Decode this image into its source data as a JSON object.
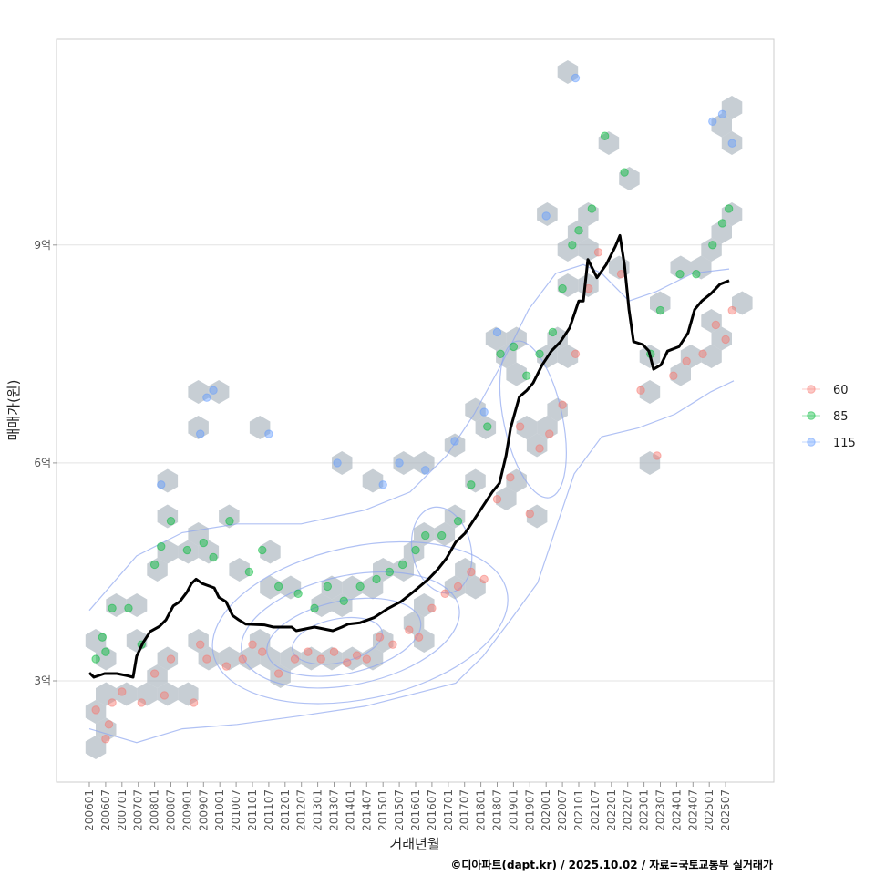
{
  "chart_data": {
    "type": "scatter",
    "title": "",
    "xlabel": "거래년월",
    "ylabel": "매매가(원)",
    "caption": "©디아파트(dapt.kr) / 2025.10.02 / 자료=국토교통부 실거래가",
    "ylim": [
      1.61,
      11.84
    ],
    "xlim": [
      2004.98,
      2027.0
    ],
    "y_unit": "억",
    "y_ticks": [
      {
        "value": 3,
        "label": "3억"
      },
      {
        "value": 6,
        "label": "6억"
      },
      {
        "value": 9,
        "label": "9억"
      }
    ],
    "x_ticks": [
      "200601",
      "200607",
      "200701",
      "200707",
      "200801",
      "200807",
      "200901",
      "200907",
      "201001",
      "201007",
      "201101",
      "201107",
      "201201",
      "201207",
      "201301",
      "201307",
      "201401",
      "201407",
      "201501",
      "201507",
      "201601",
      "201607",
      "201701",
      "201707",
      "201801",
      "201807",
      "201901",
      "201907",
      "202001",
      "202007",
      "202101",
      "202107",
      "202201",
      "202207",
      "202301",
      "202307",
      "202401",
      "202407",
      "202501",
      "202507"
    ],
    "grid": "horizontal-major",
    "legend": {
      "placement": "right",
      "entries": [
        {
          "label": "60",
          "color": "#F8766D"
        },
        {
          "label": "85",
          "color": "#00BA38"
        },
        {
          "label": "115",
          "color": "#619CFF"
        }
      ]
    },
    "series": [
      {
        "name": "60",
        "type": "scatter",
        "color": "#F8766D",
        "points": [
          [
            2006.2,
            2.6
          ],
          [
            2006.5,
            2.2
          ],
          [
            2006.6,
            2.4
          ],
          [
            2006.7,
            2.7
          ],
          [
            2007.0,
            2.85
          ],
          [
            2007.6,
            2.7
          ],
          [
            2008.0,
            3.1
          ],
          [
            2008.3,
            2.8
          ],
          [
            2008.5,
            3.3
          ],
          [
            2009.2,
            2.7
          ],
          [
            2009.4,
            3.5
          ],
          [
            2009.6,
            3.3
          ],
          [
            2010.2,
            3.2
          ],
          [
            2010.7,
            3.3
          ],
          [
            2011.0,
            3.5
          ],
          [
            2011.3,
            3.4
          ],
          [
            2011.8,
            3.1
          ],
          [
            2012.3,
            3.3
          ],
          [
            2012.7,
            3.4
          ],
          [
            2013.1,
            3.3
          ],
          [
            2013.5,
            3.4
          ],
          [
            2013.9,
            3.25
          ],
          [
            2014.2,
            3.35
          ],
          [
            2014.5,
            3.3
          ],
          [
            2014.9,
            3.6
          ],
          [
            2015.3,
            3.5
          ],
          [
            2015.8,
            3.7
          ],
          [
            2016.1,
            3.6
          ],
          [
            2016.5,
            4.0
          ],
          [
            2016.9,
            4.2
          ],
          [
            2017.3,
            4.3
          ],
          [
            2017.7,
            4.5
          ],
          [
            2018.1,
            4.4
          ],
          [
            2018.5,
            5.5
          ],
          [
            2018.9,
            5.8
          ],
          [
            2019.2,
            6.5
          ],
          [
            2019.5,
            5.3
          ],
          [
            2019.8,
            6.2
          ],
          [
            2020.1,
            6.4
          ],
          [
            2020.5,
            6.8
          ],
          [
            2020.9,
            7.5
          ],
          [
            2021.3,
            8.4
          ],
          [
            2021.6,
            8.9
          ],
          [
            2022.3,
            8.6
          ],
          [
            2022.9,
            7.0
          ],
          [
            2023.4,
            6.1
          ],
          [
            2023.9,
            7.2
          ],
          [
            2024.3,
            7.4
          ],
          [
            2024.8,
            7.5
          ],
          [
            2025.2,
            7.9
          ],
          [
            2025.5,
            7.7
          ],
          [
            2025.7,
            8.1
          ]
        ]
      },
      {
        "name": "85",
        "type": "scatter",
        "color": "#00BA38",
        "points": [
          [
            2006.2,
            3.3
          ],
          [
            2006.4,
            3.6
          ],
          [
            2006.5,
            3.4
          ],
          [
            2006.7,
            4.0
          ],
          [
            2007.2,
            4.0
          ],
          [
            2007.6,
            3.5
          ],
          [
            2008.0,
            4.6
          ],
          [
            2008.2,
            4.85
          ],
          [
            2008.5,
            5.2
          ],
          [
            2009.0,
            4.8
          ],
          [
            2009.5,
            4.9
          ],
          [
            2009.8,
            4.7
          ],
          [
            2010.3,
            5.2
          ],
          [
            2010.9,
            4.5
          ],
          [
            2011.3,
            4.8
          ],
          [
            2011.8,
            4.3
          ],
          [
            2012.4,
            4.2
          ],
          [
            2012.9,
            4.0
          ],
          [
            2013.3,
            4.3
          ],
          [
            2013.8,
            4.1
          ],
          [
            2014.3,
            4.3
          ],
          [
            2014.8,
            4.4
          ],
          [
            2015.2,
            4.5
          ],
          [
            2015.6,
            4.6
          ],
          [
            2016.0,
            4.8
          ],
          [
            2016.3,
            5.0
          ],
          [
            2016.8,
            5.0
          ],
          [
            2017.3,
            5.2
          ],
          [
            2017.7,
            5.7
          ],
          [
            2018.2,
            6.5
          ],
          [
            2018.6,
            7.5
          ],
          [
            2019.0,
            7.6
          ],
          [
            2019.4,
            7.2
          ],
          [
            2019.8,
            7.5
          ],
          [
            2020.2,
            7.8
          ],
          [
            2020.5,
            8.4
          ],
          [
            2020.8,
            9.0
          ],
          [
            2021.0,
            9.2
          ],
          [
            2021.4,
            9.5
          ],
          [
            2021.8,
            10.5
          ],
          [
            2022.4,
            10.0
          ],
          [
            2023.2,
            7.5
          ],
          [
            2023.5,
            8.1
          ],
          [
            2024.1,
            8.6
          ],
          [
            2024.6,
            8.6
          ],
          [
            2025.1,
            9.0
          ],
          [
            2025.4,
            9.3
          ],
          [
            2025.6,
            9.5
          ]
        ]
      },
      {
        "name": "115",
        "type": "scatter",
        "color": "#619CFF",
        "points": [
          [
            2008.2,
            5.7
          ],
          [
            2009.4,
            6.4
          ],
          [
            2009.6,
            6.9
          ],
          [
            2009.8,
            7.0
          ],
          [
            2011.5,
            6.4
          ],
          [
            2013.6,
            6.0
          ],
          [
            2015.0,
            5.7
          ],
          [
            2015.5,
            6.0
          ],
          [
            2016.3,
            5.9
          ],
          [
            2017.2,
            6.3
          ],
          [
            2018.1,
            6.7
          ],
          [
            2018.5,
            7.8
          ],
          [
            2020.0,
            9.4
          ],
          [
            2020.9,
            11.3
          ],
          [
            2025.1,
            10.7
          ],
          [
            2025.4,
            10.8
          ],
          [
            2025.7,
            10.4
          ]
        ]
      },
      {
        "name": "trend",
        "type": "line",
        "color": "#000000",
        "points": [
          [
            2006.0,
            3.11
          ],
          [
            2006.14,
            3.05
          ],
          [
            2006.47,
            3.1
          ],
          [
            2006.84,
            3.1
          ],
          [
            2007.17,
            3.07
          ],
          [
            2007.34,
            3.05
          ],
          [
            2007.45,
            3.34
          ],
          [
            2007.65,
            3.53
          ],
          [
            2007.87,
            3.68
          ],
          [
            2008.15,
            3.75
          ],
          [
            2008.35,
            3.84
          ],
          [
            2008.57,
            4.03
          ],
          [
            2008.77,
            4.09
          ],
          [
            2008.99,
            4.22
          ],
          [
            2009.13,
            4.34
          ],
          [
            2009.27,
            4.4
          ],
          [
            2009.46,
            4.34
          ],
          [
            2009.83,
            4.28
          ],
          [
            2009.97,
            4.15
          ],
          [
            2010.19,
            4.09
          ],
          [
            2010.39,
            3.9
          ],
          [
            2010.58,
            3.84
          ],
          [
            2010.8,
            3.78
          ],
          [
            2011.36,
            3.77
          ],
          [
            2011.64,
            3.74
          ],
          [
            2012.2,
            3.74
          ],
          [
            2012.34,
            3.69
          ],
          [
            2012.9,
            3.74
          ],
          [
            2013.46,
            3.69
          ],
          [
            2013.74,
            3.74
          ],
          [
            2013.93,
            3.78
          ],
          [
            2014.3,
            3.8
          ],
          [
            2014.72,
            3.87
          ],
          [
            2015.13,
            3.99
          ],
          [
            2015.55,
            4.09
          ],
          [
            2015.97,
            4.24
          ],
          [
            2016.39,
            4.4
          ],
          [
            2016.67,
            4.53
          ],
          [
            2016.95,
            4.69
          ],
          [
            2017.23,
            4.91
          ],
          [
            2017.51,
            5.03
          ],
          [
            2017.79,
            5.22
          ],
          [
            2018.07,
            5.41
          ],
          [
            2018.35,
            5.6
          ],
          [
            2018.57,
            5.72
          ],
          [
            2018.77,
            6.1
          ],
          [
            2018.91,
            6.48
          ],
          [
            2019.18,
            6.91
          ],
          [
            2019.41,
            7.0
          ],
          [
            2019.6,
            7.1
          ],
          [
            2019.88,
            7.35
          ],
          [
            2020.16,
            7.54
          ],
          [
            2020.44,
            7.67
          ],
          [
            2020.72,
            7.86
          ],
          [
            2021.0,
            8.23
          ],
          [
            2021.14,
            8.23
          ],
          [
            2021.28,
            8.8
          ],
          [
            2021.56,
            8.55
          ],
          [
            2021.84,
            8.73
          ],
          [
            2022.12,
            8.98
          ],
          [
            2022.26,
            9.13
          ],
          [
            2022.4,
            8.73
          ],
          [
            2022.54,
            8.11
          ],
          [
            2022.68,
            7.67
          ],
          [
            2022.96,
            7.63
          ],
          [
            2023.15,
            7.54
          ],
          [
            2023.29,
            7.29
          ],
          [
            2023.52,
            7.35
          ],
          [
            2023.72,
            7.54
          ],
          [
            2024.07,
            7.6
          ],
          [
            2024.35,
            7.79
          ],
          [
            2024.55,
            8.11
          ],
          [
            2024.77,
            8.23
          ],
          [
            2025.05,
            8.33
          ],
          [
            2025.33,
            8.46
          ],
          [
            2025.61,
            8.51
          ]
        ]
      }
    ],
    "density_contours": [
      {
        "name": "outer-upper",
        "points": [
          [
            2006.0,
            3.97
          ],
          [
            2007.45,
            4.72
          ],
          [
            2008.85,
            5.04
          ],
          [
            2010.53,
            5.16
          ],
          [
            2012.49,
            5.16
          ],
          [
            2014.44,
            5.35
          ],
          [
            2015.83,
            5.6
          ],
          [
            2016.95,
            6.1
          ],
          [
            2017.79,
            6.67
          ],
          [
            2018.63,
            7.36
          ],
          [
            2019.46,
            8.11
          ],
          [
            2020.3,
            8.61
          ],
          [
            2021.14,
            8.73
          ],
          [
            2021.7,
            8.61
          ],
          [
            2022.54,
            8.23
          ],
          [
            2023.38,
            8.36
          ],
          [
            2024.49,
            8.61
          ],
          [
            2025.61,
            8.67
          ]
        ]
      },
      {
        "name": "outer-lower",
        "points": [
          [
            2006.0,
            2.34
          ],
          [
            2007.45,
            2.15
          ],
          [
            2008.85,
            2.34
          ],
          [
            2010.53,
            2.4
          ],
          [
            2012.49,
            2.52
          ],
          [
            2014.44,
            2.65
          ],
          [
            2016.11,
            2.84
          ],
          [
            2017.23,
            2.97
          ],
          [
            2018.07,
            3.34
          ],
          [
            2018.91,
            3.84
          ],
          [
            2019.74,
            4.35
          ],
          [
            2020.3,
            5.1
          ],
          [
            2020.86,
            5.85
          ],
          [
            2021.7,
            6.36
          ],
          [
            2022.82,
            6.48
          ],
          [
            2023.94,
            6.67
          ],
          [
            2025.05,
            6.98
          ],
          [
            2025.75,
            7.13
          ]
        ]
      }
    ],
    "density_levels": [
      {
        "cx": 2014.3,
        "cy": 3.8,
        "rx": 4.6,
        "ry": 1.05
      },
      {
        "cx": 2014.0,
        "cy": 3.7,
        "rx": 3.4,
        "ry": 0.75
      },
      {
        "cx": 2013.8,
        "cy": 3.6,
        "rx": 2.4,
        "ry": 0.5
      },
      {
        "cx": 2013.6,
        "cy": 3.55,
        "rx": 1.4,
        "ry": 0.3
      },
      {
        "cx": 2019.6,
        "cy": 6.6,
        "rx": 0.9,
        "ry": 1.1
      },
      {
        "cx": 2016.8,
        "cy": 4.8,
        "rx": 0.9,
        "ry": 0.6
      }
    ],
    "hexbin_color": "#A9B4BD"
  }
}
